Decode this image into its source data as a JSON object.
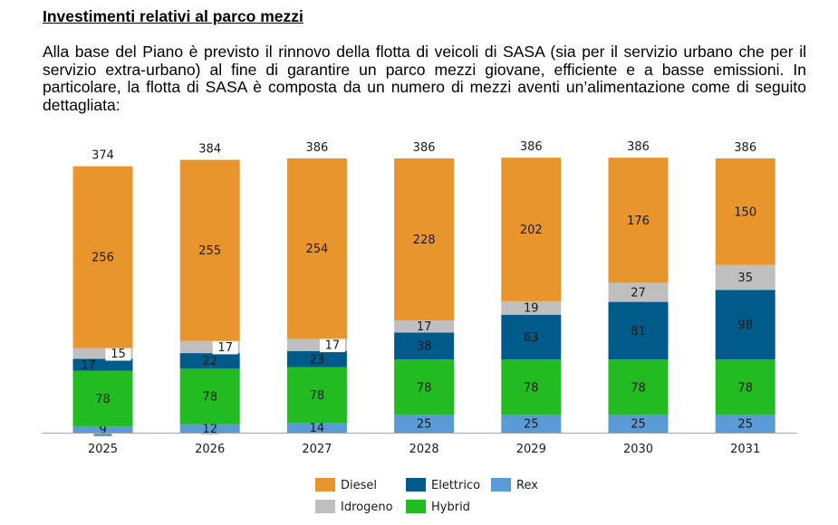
{
  "page": {
    "heading": "Investimenti relativi al parco mezzi",
    "paragraph": "Alla base del Piano è previsto il rinnovo della flotta di veicoli di SASA (sia per il servizio urbano che per il servizio extra-urbano) al fine di garantire un parco mezzi giovane, efficiente e a basse emissioni. In particolare, la flotta di SASA è composta da un numero di mezzi aventi un’alimentazione come di seguito dettagliata:"
  },
  "chart_data": {
    "type": "bar",
    "stacked": true,
    "categories": [
      "2025",
      "2026",
      "2027",
      "2028",
      "2029",
      "2030",
      "2031"
    ],
    "totals": [
      374,
      384,
      386,
      386,
      386,
      386,
      386
    ],
    "series": [
      {
        "name": "Rex",
        "color": "#5b9bd5",
        "label_color": "#ffffff",
        "values": [
          9,
          12,
          14,
          25,
          25,
          25,
          25
        ]
      },
      {
        "name": "Hybrid",
        "color": "#22bb22",
        "label_color": "#ffffff",
        "values": [
          78,
          78,
          78,
          78,
          78,
          78,
          78
        ]
      },
      {
        "name": "Elettrico",
        "color": "#005b8a",
        "label_color": "#ffffff",
        "values": [
          17,
          22,
          23,
          38,
          63,
          81,
          98
        ]
      },
      {
        "name": "Idrogeno",
        "color": "#bfbfbf",
        "label_color": "#1a1a1a",
        "values": [
          15,
          17,
          17,
          17,
          19,
          27,
          35
        ]
      },
      {
        "name": "Diesel",
        "color": "#e8952e",
        "label_color": "#1a1a1a",
        "values": [
          256,
          255,
          254,
          228,
          202,
          176,
          150
        ]
      }
    ],
    "legend": {
      "position": "bottom",
      "order": [
        "Diesel",
        "Elettrico",
        "Rex",
        "Idrogeno",
        "Hybrid"
      ]
    },
    "grid": false,
    "ylim": [
      0,
      386
    ]
  }
}
